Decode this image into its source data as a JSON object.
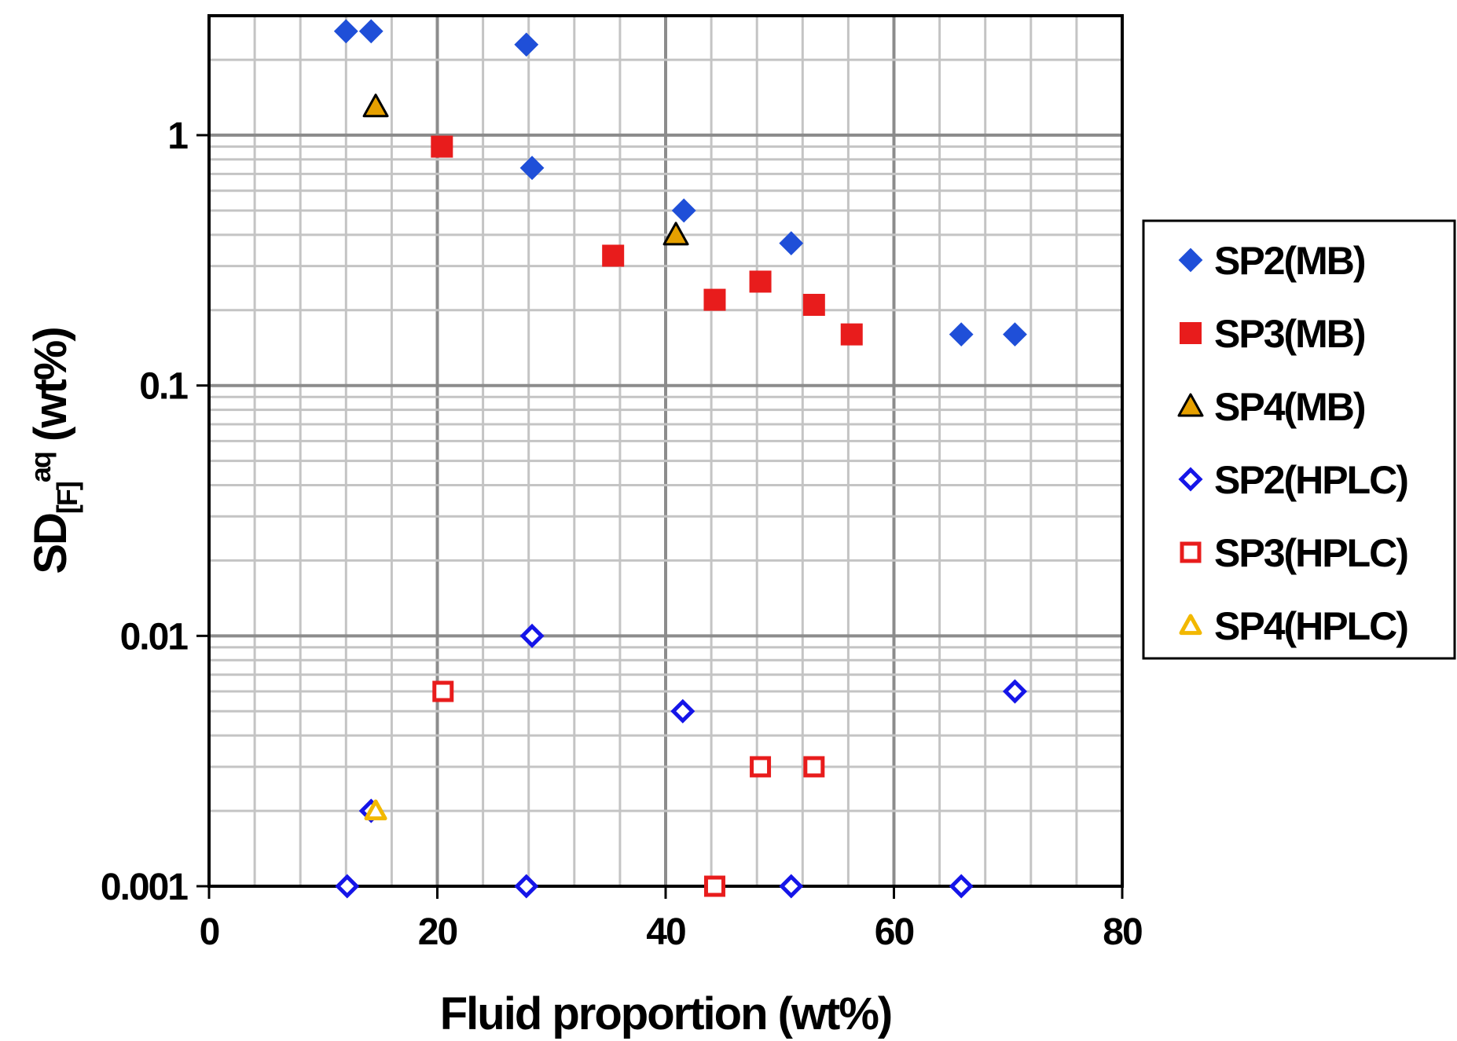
{
  "chart_data": {
    "type": "scatter",
    "xlabel": "Fluid proportion (wt%)",
    "ylabel": {
      "main": "SD",
      "subscript": "[F]",
      "superscript": "aq",
      "unit": " (wt%)"
    },
    "xlim": [
      0,
      80
    ],
    "ylim": [
      0.001,
      3
    ],
    "yscale": "log",
    "x_ticks": [
      0,
      20,
      40,
      60,
      80
    ],
    "x_tick_labels": [
      "0",
      "20",
      "40",
      "60",
      "80"
    ],
    "y_ticks": [
      0.001,
      0.01,
      0.1,
      1
    ],
    "y_tick_labels": [
      "0.001",
      "0.01",
      "0.1",
      "1"
    ],
    "grid": true,
    "legend_position": "right",
    "series": [
      {
        "name": "SP2(MB)",
        "marker": "diamond",
        "filled": true,
        "color": "#1f4fd8",
        "points": [
          [
            12,
            2.6
          ],
          [
            14.2,
            2.6
          ],
          [
            27.8,
            2.3
          ],
          [
            28.3,
            0.74
          ],
          [
            41.6,
            0.5
          ],
          [
            51,
            0.37
          ],
          [
            65.9,
            0.16
          ],
          [
            70.6,
            0.16
          ]
        ]
      },
      {
        "name": "SP3(MB)",
        "marker": "square",
        "filled": true,
        "color": "#e81c1c",
        "points": [
          [
            20.4,
            0.9
          ],
          [
            35.4,
            0.33
          ],
          [
            44.3,
            0.22
          ],
          [
            48.3,
            0.26
          ],
          [
            53,
            0.21
          ],
          [
            56.3,
            0.16
          ]
        ]
      },
      {
        "name": "SP4(MB)",
        "marker": "triangle",
        "filled": true,
        "color": "#e6a000",
        "points": [
          [
            14.6,
            1.3
          ],
          [
            40.9,
            0.4
          ]
        ]
      },
      {
        "name": "SP2(HPLC)",
        "marker": "diamond",
        "filled": false,
        "color": "#1515e8",
        "points": [
          [
            12.1,
            0.001
          ],
          [
            27.8,
            0.001
          ],
          [
            28.3,
            0.01
          ],
          [
            41.5,
            0.005
          ],
          [
            51,
            0.001
          ],
          [
            65.9,
            0.001
          ],
          [
            70.6,
            0.006
          ],
          [
            14.2,
            0.002
          ]
        ]
      },
      {
        "name": "SP3(HPLC)",
        "marker": "square",
        "filled": false,
        "color": "#e81c1c",
        "points": [
          [
            20.5,
            0.006
          ],
          [
            44.3,
            0.001
          ],
          [
            48.3,
            0.003
          ],
          [
            53,
            0.003
          ]
        ]
      },
      {
        "name": "SP4(HPLC)",
        "marker": "triangle",
        "filled": false,
        "color": "#f2b800",
        "points": [
          [
            14.6,
            0.002
          ]
        ]
      }
    ]
  }
}
